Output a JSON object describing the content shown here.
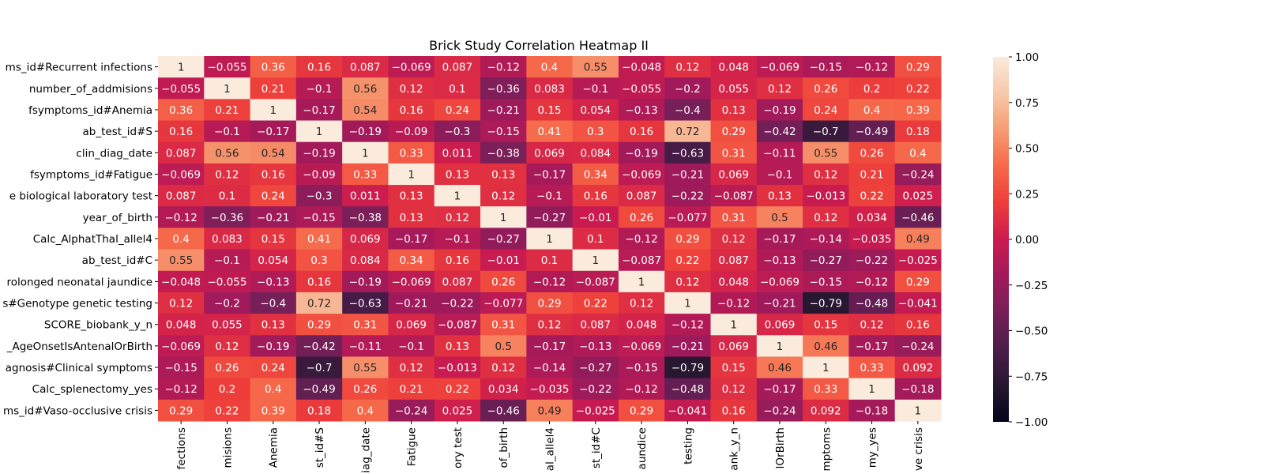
{
  "chart_data": {
    "type": "heatmap",
    "title": "Brick Study Correlation Heatmap II",
    "xlabel": "",
    "ylabel": "",
    "row_tick_labels": [
      "ms_id#Recurrent infections",
      "number_of_addmisions",
      "fsymptoms_id#Anemia",
      "ab_test_id#S",
      "clin_diag_date",
      "fsymptoms_id#Fatigue",
      "e biological laboratory test",
      "year_of_birth",
      "Calc_AlphatThal_allel4",
      "ab_test_id#C",
      "rolonged neonatal jaundice",
      "s#Genotype genetic testing",
      "SCORE_biobank_y_n",
      "_AgeOnsetIsAntenalOrBirth",
      "agnosis#Clinical symptoms",
      "Calc_splenectomy_yes",
      "ms_id#Vaso-occlusive crisis"
    ],
    "column_tick_labels": [
      "fections",
      "misions",
      "Anemia",
      "st_id#S",
      "iag_date",
      "Fatigue",
      "ory test",
      "of_birth",
      "al_allel4",
      "st_id#C",
      "aundice",
      "testing",
      "ank_y_n",
      "lOrBirth",
      "mptoms",
      "my_yes",
      "ve crisis"
    ],
    "values": [
      [
        1,
        -0.055,
        0.36,
        0.16,
        0.087,
        -0.069,
        0.087,
        -0.12,
        0.4,
        0.55,
        -0.048,
        0.12,
        0.048,
        -0.069,
        -0.15,
        -0.12,
        0.29
      ],
      [
        -0.055,
        1,
        0.21,
        -0.1,
        0.56,
        0.12,
        0.1,
        -0.36,
        0.083,
        -0.1,
        -0.055,
        -0.2,
        0.055,
        0.12,
        0.26,
        0.2,
        0.22
      ],
      [
        0.36,
        0.21,
        1,
        -0.17,
        0.54,
        0.16,
        0.24,
        -0.21,
        0.15,
        0.054,
        -0.13,
        -0.4,
        0.13,
        -0.19,
        0.24,
        0.4,
        0.39
      ],
      [
        0.16,
        -0.1,
        -0.17,
        1,
        -0.19,
        -0.09,
        -0.3,
        -0.15,
        0.41,
        0.3,
        0.16,
        0.72,
        0.29,
        -0.42,
        -0.7,
        -0.49,
        0.18
      ],
      [
        0.087,
        0.56,
        0.54,
        -0.19,
        1,
        0.33,
        0.011,
        -0.38,
        0.069,
        0.084,
        -0.19,
        -0.63,
        0.31,
        -0.11,
        0.55,
        0.26,
        0.4
      ],
      [
        -0.069,
        0.12,
        0.16,
        -0.09,
        0.33,
        1,
        0.13,
        0.13,
        -0.17,
        0.34,
        -0.069,
        -0.21,
        0.069,
        -0.1,
        0.12,
        0.21,
        -0.24
      ],
      [
        0.087,
        0.1,
        0.24,
        -0.3,
        0.011,
        0.13,
        1,
        0.12,
        -0.1,
        0.16,
        0.087,
        -0.22,
        -0.087,
        0.13,
        -0.013,
        0.22,
        0.025
      ],
      [
        -0.12,
        -0.36,
        -0.21,
        -0.15,
        -0.38,
        0.13,
        0.12,
        1,
        -0.27,
        -0.01,
        0.26,
        -0.077,
        0.31,
        0.5,
        0.12,
        0.034,
        -0.46
      ],
      [
        0.4,
        0.083,
        0.15,
        0.41,
        0.069,
        -0.17,
        -0.1,
        -0.27,
        1,
        0.1,
        -0.12,
        0.29,
        0.12,
        -0.17,
        -0.14,
        -0.035,
        0.49
      ],
      [
        0.55,
        -0.1,
        0.054,
        0.3,
        0.084,
        0.34,
        0.16,
        -0.01,
        0.1,
        1,
        -0.087,
        0.22,
        0.087,
        -0.13,
        -0.27,
        -0.22,
        -0.025
      ],
      [
        -0.048,
        -0.055,
        -0.13,
        0.16,
        -0.19,
        -0.069,
        0.087,
        0.26,
        -0.12,
        -0.087,
        1,
        0.12,
        0.048,
        -0.069,
        -0.15,
        -0.12,
        0.29
      ],
      [
        0.12,
        -0.2,
        -0.4,
        0.72,
        -0.63,
        -0.21,
        -0.22,
        -0.077,
        0.29,
        0.22,
        0.12,
        1,
        -0.12,
        -0.21,
        -0.79,
        -0.48,
        -0.041
      ],
      [
        0.048,
        0.055,
        0.13,
        0.29,
        0.31,
        0.069,
        -0.087,
        0.31,
        0.12,
        0.087,
        0.048,
        -0.12,
        1,
        0.069,
        0.15,
        0.12,
        0.16
      ],
      [
        -0.069,
        0.12,
        -0.19,
        -0.42,
        -0.11,
        -0.1,
        0.13,
        0.5,
        -0.17,
        -0.13,
        -0.069,
        -0.21,
        0.069,
        1,
        0.46,
        -0.17,
        -0.24
      ],
      [
        -0.15,
        0.26,
        0.24,
        -0.7,
        0.55,
        0.12,
        -0.013,
        0.12,
        -0.14,
        -0.27,
        -0.15,
        -0.79,
        0.15,
        0.46,
        1,
        0.33,
        0.092
      ],
      [
        -0.12,
        0.2,
        0.4,
        -0.49,
        0.26,
        0.21,
        0.22,
        0.034,
        -0.035,
        -0.22,
        -0.12,
        -0.48,
        0.12,
        -0.17,
        0.33,
        1,
        -0.18
      ],
      [
        0.29,
        0.22,
        0.39,
        0.18,
        0.4,
        -0.24,
        0.025,
        -0.46,
        0.49,
        -0.025,
        0.29,
        -0.041,
        0.16,
        -0.24,
        0.092,
        -0.18,
        1
      ]
    ],
    "colorbar": {
      "vmin": -1,
      "vmax": 1,
      "ticks": [
        1,
        0.75,
        0.5,
        0.25,
        0,
        -0.25,
        -0.5,
        -0.75,
        -1
      ],
      "tick_labels": [
        "1.00",
        "0.75",
        "0.50",
        "0.25",
        "0.00",
        "−0.25",
        "−0.50",
        "−0.75",
        "−1.00"
      ],
      "colormap": "rocket",
      "colors": [
        "#03051a",
        "#26172f",
        "#4c1d4b",
        "#761f58",
        "#a11a5b",
        "#cb1b4f",
        "#ed3d3a",
        "#f6684a",
        "#f69c73",
        "#f7c9aa",
        "#faebdd"
      ]
    },
    "legend": "none",
    "grid": false
  }
}
